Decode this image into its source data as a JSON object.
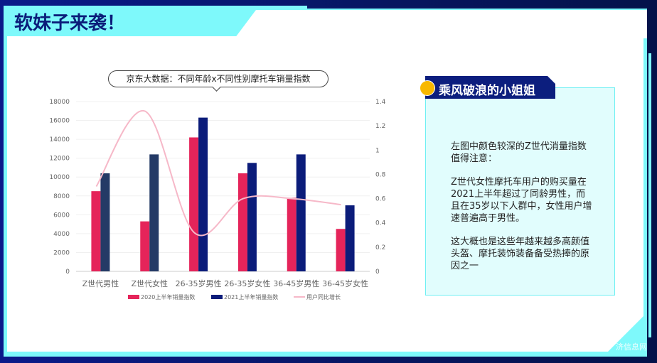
{
  "page": {
    "title": "软妹子来袭！",
    "watermark": "济信息网"
  },
  "colors": {
    "series_2020": "#e5245a",
    "series_2021_first": "#243a66",
    "series_2021": "#0b1c7a",
    "line": "#f6b8c8",
    "accent": "#7ef9fb",
    "navy": "#0c1e7e",
    "dot": "#f8b800"
  },
  "chart_data": {
    "type": "bar",
    "title": "京东大数据：不同年龄x不同性别摩托车销量指数",
    "categories": [
      "Z世代男性",
      "Z世代女性",
      "26-35岁男性",
      "26-35岁女性",
      "36-45岁男性",
      "36-45岁女性"
    ],
    "series": [
      {
        "name": "2020上半年销量指数",
        "type": "bar",
        "axis": "left",
        "values": [
          8500,
          5300,
          14200,
          10400,
          7800,
          4500
        ]
      },
      {
        "name": "2021上半年销量指数",
        "type": "bar",
        "axis": "left",
        "values": [
          10400,
          12400,
          16300,
          11500,
          12400,
          7000
        ]
      },
      {
        "name": "用户同比增长",
        "type": "line",
        "axis": "right",
        "smooth": true,
        "values": [
          0.7,
          1.32,
          0.32,
          0.6,
          0.6,
          0.55
        ]
      }
    ],
    "ylim": [
      0,
      18000
    ],
    "yticks": [
      0,
      2000,
      4000,
      6000,
      8000,
      10000,
      12000,
      14000,
      16000,
      18000
    ],
    "y2lim": [
      0,
      1.4
    ],
    "y2ticks": [
      "0",
      "0.2",
      "0.4",
      "0.6",
      "0.8",
      "1",
      "1.2",
      "1.4"
    ],
    "grid": true,
    "legend": "bottom"
  },
  "side": {
    "title": "乘风破浪的小姐姐",
    "paragraphs": [
      "左图中颜色较深的Z世代消量指数值得注意：",
      "Z世代女性摩托车用户的购买量在2021上半年超过了同龄男性，而且在35岁以下人群中，女性用户增速普遍高于男性。",
      "这大概也是这些年越来越多高颜值头盔、摩托装饰装备备受热捧的原因之一"
    ]
  }
}
